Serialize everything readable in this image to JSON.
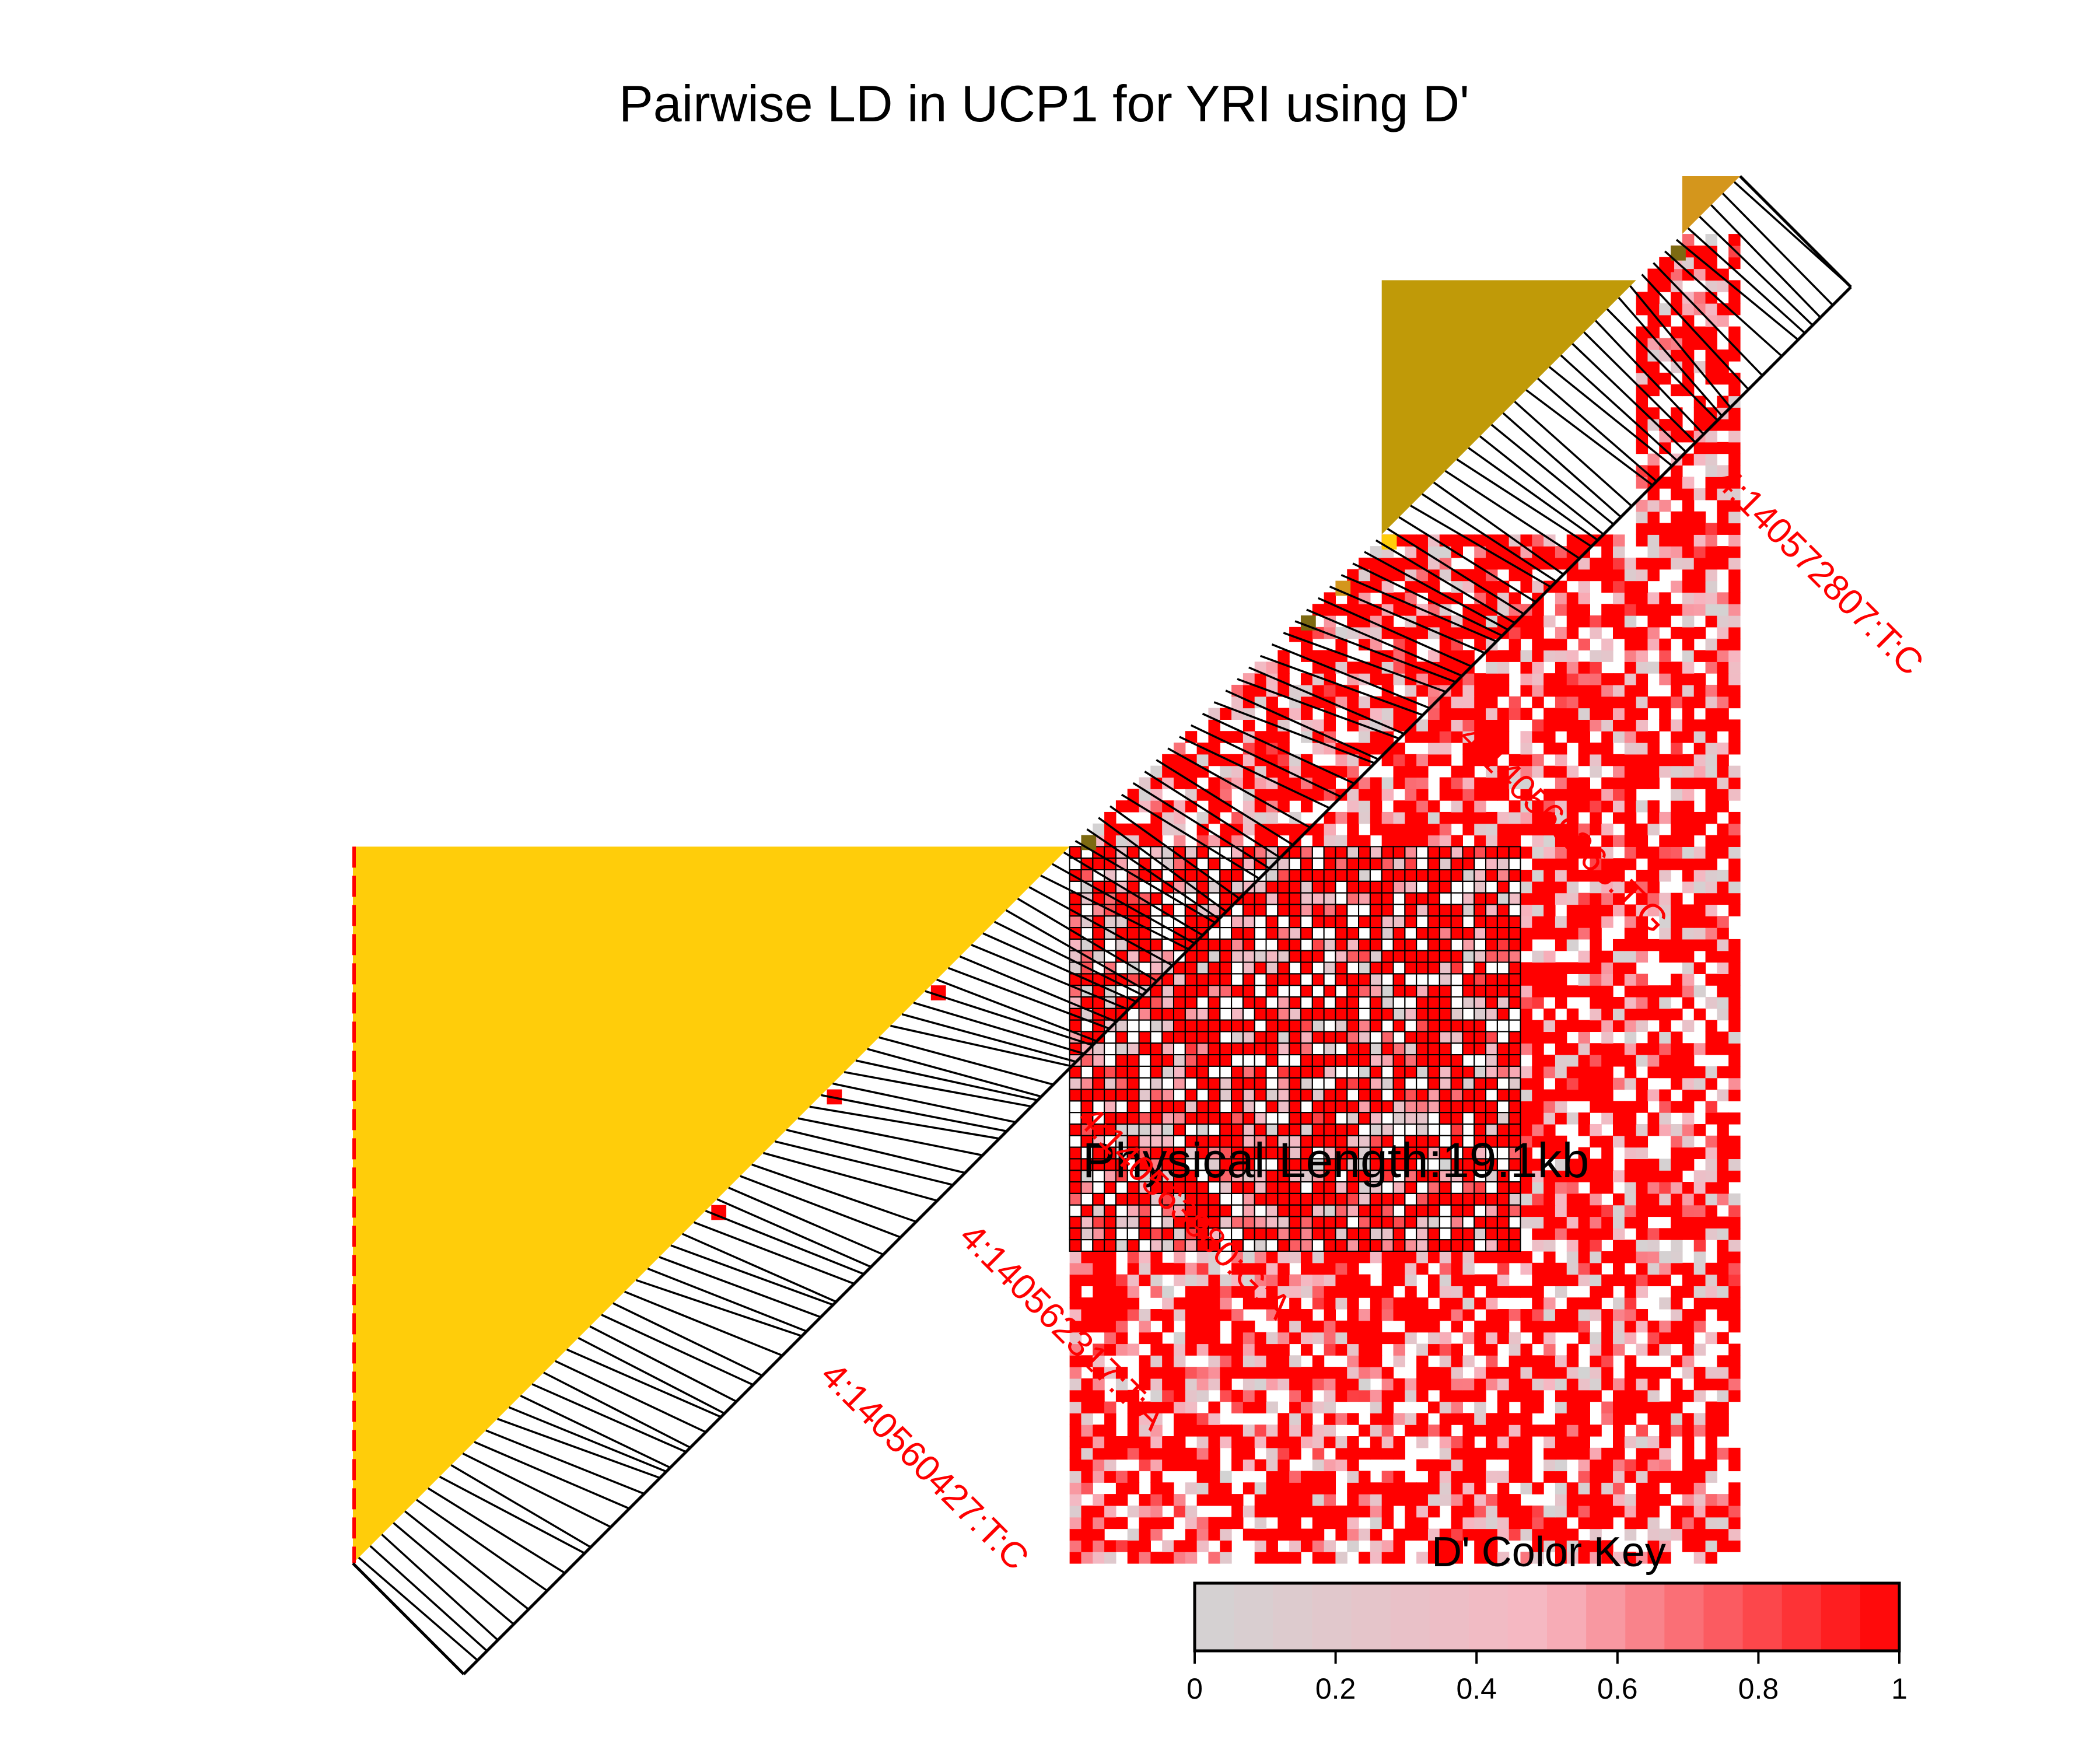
{
  "chart_data": {
    "type": "heatmap",
    "title": "Pairwise LD in UCP1 for YRI using D'",
    "measure": "D'",
    "physical_length_label": "Physical Length:19.1kb",
    "n_snps": 120,
    "colors": {
      "low": "#d3d3d3",
      "mid": "#f7b6c1",
      "high": "#ff0000",
      "block_large": "#ffcd0a",
      "block_upper": "#c09a08",
      "block_corner": "#d4961c",
      "block_marker_dark": "#7d6a12",
      "grid_line": "#000000",
      "label": "#ff0000"
    },
    "blocks": [
      {
        "name": "block-1",
        "first_snp": 0,
        "last_snp": 61,
        "color": "#ffcd0a"
      },
      {
        "name": "block-2",
        "first_snp": 89,
        "last_snp": 110,
        "color": "#c09a08"
      },
      {
        "name": "block-3",
        "first_snp": 115,
        "last_snp": 119,
        "color": "#d4961c"
      }
    ],
    "gridded_region": {
      "rows": [
        27,
        61
      ],
      "cols": [
        62,
        100
      ]
    },
    "highlight_markers": [
      {
        "snp": 62,
        "color": "#7d6a12"
      },
      {
        "snp": 80,
        "color": "#ff0000"
      },
      {
        "snp": 81,
        "color": "#7d6a12"
      },
      {
        "snp": 84,
        "color": "#d4961c"
      },
      {
        "snp": 88,
        "color": "#ffcd0a"
      },
      {
        "snp": 112,
        "color": "#ff0000"
      },
      {
        "snp": 113,
        "color": "#7d6a12"
      },
      {
        "snp": 30,
        "color": "#ff0000"
      },
      {
        "snp": 40,
        "color": "#ff0000"
      },
      {
        "snp": 49,
        "color": "#ff0000"
      }
    ],
    "snp_labels": [
      {
        "text": "4:140560427:T:C",
        "fraction": 0.235
      },
      {
        "text": "4:140562317:T:A",
        "fraction": 0.335
      },
      {
        "text": "4:140563980:G:A",
        "fraction": 0.42
      },
      {
        "text": "4:140569265:T:G",
        "fraction": 0.695
      },
      {
        "text": "4:140572807:T:C",
        "fraction": 0.88
      }
    ],
    "color_key": {
      "title": "D' Color Key",
      "range": [
        0,
        1
      ],
      "ticks": [
        "0",
        "0.2",
        "0.4",
        "0.6",
        "0.8",
        "1"
      ],
      "n_bins": 18
    }
  }
}
